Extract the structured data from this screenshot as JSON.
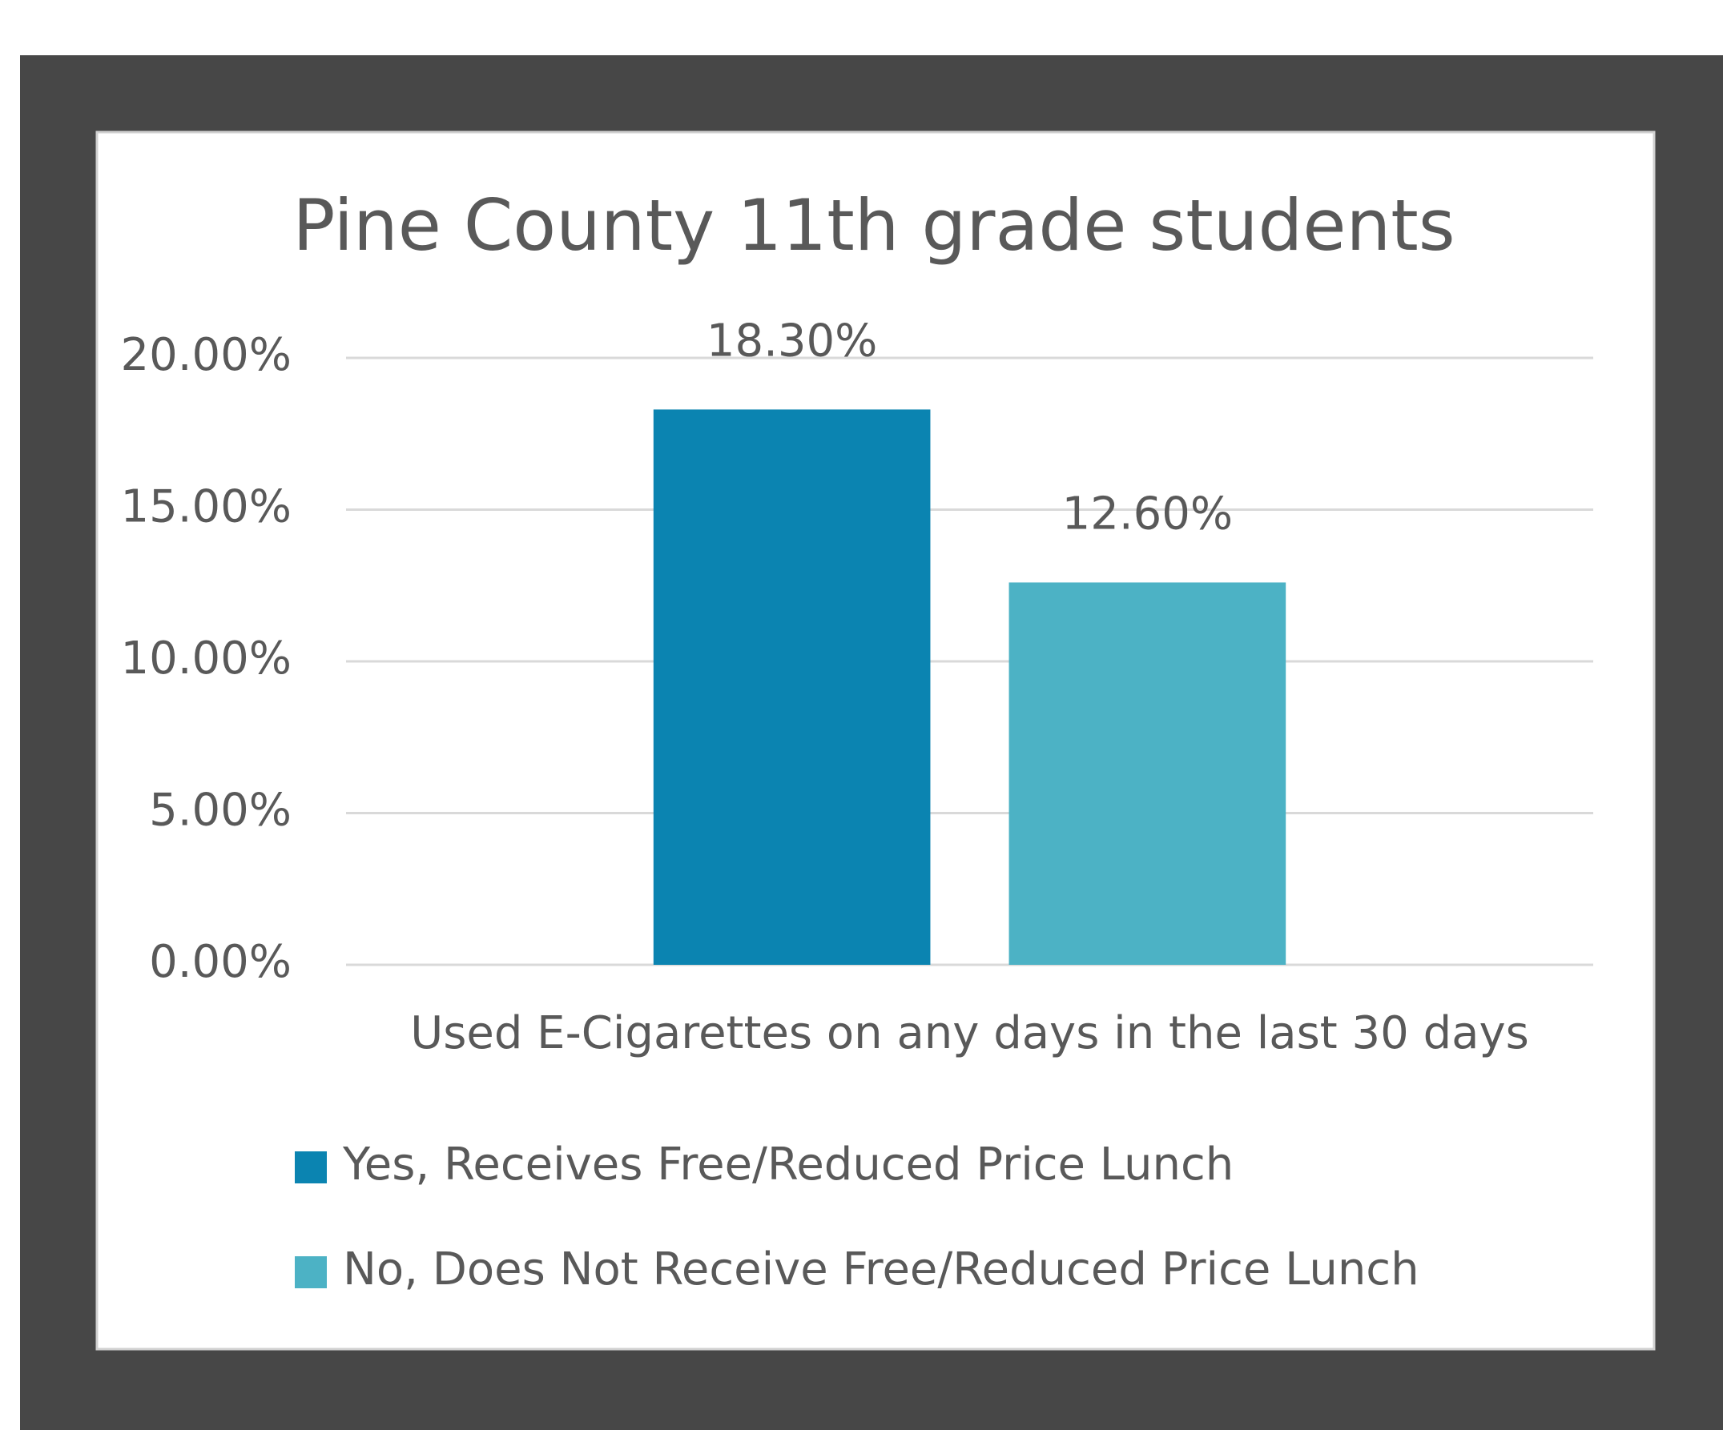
{
  "chart_data": {
    "type": "bar",
    "title": "Pine County 11th grade students",
    "categories": [
      "Used E-Cigarettes on any days in the last 30 days"
    ],
    "series": [
      {
        "name": "Yes, Receives Free/Reduced Price Lunch",
        "color": "#0b84b1",
        "values": [
          18.3
        ],
        "value_labels": [
          "18.30%"
        ]
      },
      {
        "name": "No, Does Not Receive Free/Reduced Price Lunch",
        "color": "#4cb2c5",
        "values": [
          12.6
        ],
        "value_labels": [
          "12.60%"
        ]
      }
    ],
    "ylim": [
      0,
      20
    ],
    "yticks": [
      {
        "value": 0,
        "label": "0.00%"
      },
      {
        "value": 5,
        "label": "5.00%"
      },
      {
        "value": 10,
        "label": "10.00%"
      },
      {
        "value": 15,
        "label": "15.00%"
      },
      {
        "value": 20,
        "label": "20.00%"
      }
    ],
    "grid": true,
    "legend": "bottom"
  }
}
